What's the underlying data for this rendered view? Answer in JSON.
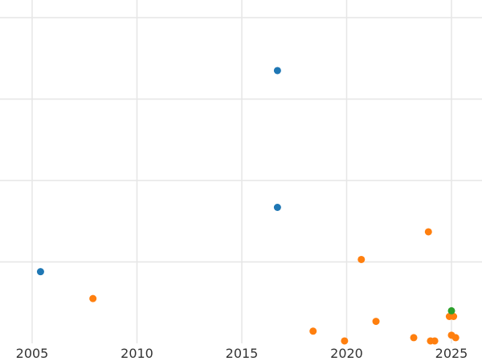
{
  "chart_data": {
    "type": "scatter",
    "title": "",
    "xlabel": "",
    "ylabel": "",
    "xlim": [
      2005,
      2026
    ],
    "x_ticks": [
      "2005",
      "2010",
      "2015",
      "2020",
      "2025"
    ],
    "ylim": [
      0,
      4.15
    ],
    "y_ticks": [
      1,
      2,
      3,
      4
    ],
    "y_tick_labels_visible": false,
    "grid": true,
    "legend": "none",
    "series": [
      {
        "color": "#1f77b4",
        "points": [
          {
            "x": 2005.4,
            "y": 0.88
          },
          {
            "x": 2016.7,
            "y": 1.67
          },
          {
            "x": 2016.7,
            "y": 3.35
          }
        ]
      },
      {
        "color": "#ff7f0e",
        "points": [
          {
            "x": 2007.9,
            "y": 0.55
          },
          {
            "x": 2018.4,
            "y": 0.15
          },
          {
            "x": 2019.9,
            "y": 0.03
          },
          {
            "x": 2020.7,
            "y": 1.03
          },
          {
            "x": 2021.4,
            "y": 0.27
          },
          {
            "x": 2023.2,
            "y": 0.07
          },
          {
            "x": 2023.9,
            "y": 1.37
          },
          {
            "x": 2024.0,
            "y": 0.03
          },
          {
            "x": 2024.2,
            "y": 0.03
          },
          {
            "x": 2024.9,
            "y": 0.33
          },
          {
            "x": 2025.0,
            "y": 0.1
          },
          {
            "x": 2025.1,
            "y": 0.33
          },
          {
            "x": 2025.2,
            "y": 0.07
          }
        ]
      },
      {
        "color": "#2ca02c",
        "points": [
          {
            "x": 2025.0,
            "y": 0.4
          }
        ]
      }
    ]
  }
}
